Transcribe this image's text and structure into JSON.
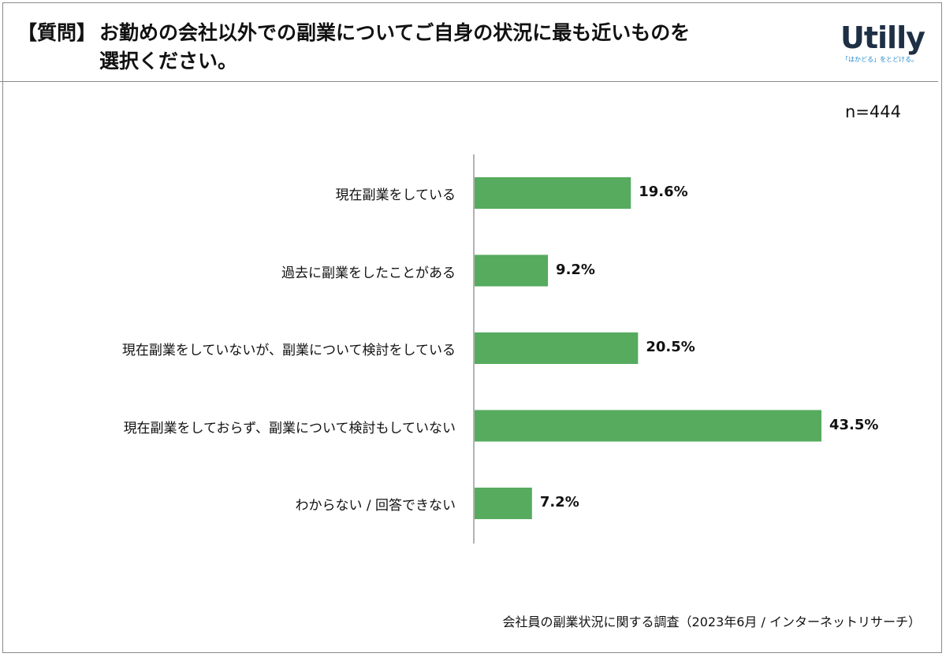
{
  "header": {
    "question_prefix": "【質問】",
    "question_line1": "お勤めの会社以外での副業についてご自身の状況に最も近いものを",
    "question_line2": "選択ください。",
    "logo_text": "Utilly",
    "logo_tagline": "「はかどる」をとどける。"
  },
  "sample": "n=444",
  "footer": "会社員の副業状況に関する調査（2023年6月 / インターネットリサーチ）",
  "colors": {
    "bar": "#56ab5e",
    "axis": "#9a9a9a"
  },
  "chart_data": {
    "type": "bar",
    "orientation": "horizontal",
    "categories": [
      "現在副業をしている",
      "過去に副業をしたことがある",
      "現在副業をしていないが、副業について検討をしている",
      "現在副業をしておらず、副業について検討もしていない",
      "わからない / 回答できない"
    ],
    "values": [
      19.6,
      9.2,
      20.5,
      43.5,
      7.2
    ],
    "value_labels": [
      "19.6%",
      "9.2%",
      "20.5%",
      "43.5%",
      "7.2%"
    ],
    "unit": "%",
    "xlim": [
      0,
      50
    ],
    "grid": false,
    "legend": "none"
  }
}
